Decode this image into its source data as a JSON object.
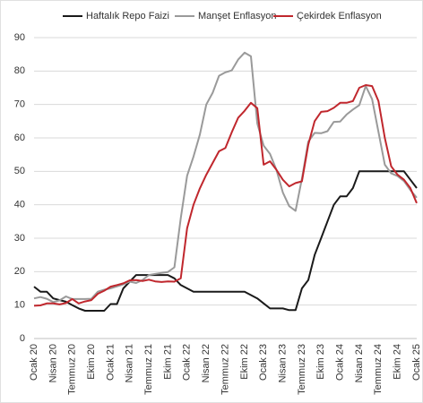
{
  "chart_data": {
    "type": "line",
    "categories": [
      "Ocak 20",
      null,
      null,
      "Nisan 20",
      null,
      null,
      "Temmuz 20",
      null,
      null,
      "Ekim 20",
      null,
      null,
      "Ocak 21",
      null,
      null,
      "Nisan 21",
      null,
      null,
      "Temmuz 21",
      null,
      null,
      "Ekim 21",
      null,
      null,
      "Ocak 22",
      null,
      null,
      "Nisan 22",
      null,
      null,
      "Temmuz 22",
      null,
      null,
      "Ekim 22",
      null,
      null,
      "Ocak 23",
      null,
      null,
      "Nisan 23",
      null,
      null,
      "Temmuz 23",
      null,
      null,
      "Ekim 23",
      null,
      null,
      "Ocak 24",
      null,
      null,
      "Nisan 24",
      null,
      null,
      "Temmuz 24",
      null,
      null,
      "Ekim 24",
      null,
      null,
      "Ocak 25"
    ],
    "series": [
      {
        "name": "Haftalık Repo Faizi",
        "color": "#1a1a1a",
        "values": [
          15.5,
          14,
          14,
          12,
          11.5,
          11,
          10,
          9,
          8.3,
          8.3,
          8.3,
          8.3,
          10.3,
          10.3,
          15,
          17,
          19,
          19,
          19,
          19,
          19,
          19,
          18,
          16,
          15,
          14,
          14,
          14,
          14,
          14,
          14,
          14,
          14,
          14,
          13,
          12,
          10.5,
          9,
          9,
          9,
          8.5,
          8.5,
          15,
          17.5,
          25,
          30,
          35,
          40,
          42.5,
          42.5,
          45,
          50,
          50,
          50,
          50,
          50,
          50,
          50,
          50,
          47.5,
          45
        ]
      },
      {
        "name": "Manşet Enflasyon",
        "color": "#9a9a9a",
        "values": [
          12,
          12.4,
          11.9,
          10.9,
          11.4,
          12.6,
          11.8,
          11.8,
          11.8,
          11.9,
          14,
          14.6,
          15,
          15.6,
          16.2,
          17,
          16.6,
          17.5,
          19,
          19.3,
          19.6,
          19.9,
          21.3,
          36,
          48.7,
          54.4,
          61,
          70,
          73.5,
          78.6,
          79.6,
          80.2,
          83.4,
          85.5,
          84.4,
          64.3,
          57.7,
          55.2,
          50.5,
          43.7,
          39.6,
          38.2,
          47.8,
          58.9,
          61.5,
          61.4,
          62,
          64.8,
          64.9,
          67,
          68.5,
          69.8,
          75.5,
          71.6,
          61.8,
          52,
          49.4,
          48.6,
          47.1,
          44.4,
          42.1
        ]
      },
      {
        "name": "Çekirdek Enflasyon",
        "color": "#c0272d",
        "values": [
          9.8,
          9.9,
          10.5,
          10.5,
          10.2,
          10.6,
          11.8,
          10.5,
          11.1,
          11.5,
          13.4,
          14.3,
          15.5,
          16,
          16.5,
          17.4,
          17.5,
          17.2,
          17.6,
          17.1,
          16.9,
          17.1,
          17,
          18,
          33,
          40,
          44.9,
          49,
          52.5,
          56,
          57,
          61.7,
          66,
          68.1,
          70.5,
          68.9,
          52,
          53,
          50.5,
          47.5,
          45.5,
          46.5,
          47,
          58,
          65,
          67.8,
          68,
          69,
          70.5,
          70.5,
          71,
          75,
          75.8,
          75.5,
          71,
          60,
          51.5,
          49,
          47.5,
          45,
          40.5
        ]
      }
    ],
    "ylim": [
      0,
      90
    ],
    "yticks": [
      0,
      10,
      20,
      30,
      40,
      50,
      60,
      70,
      80,
      90
    ],
    "grid": true
  }
}
